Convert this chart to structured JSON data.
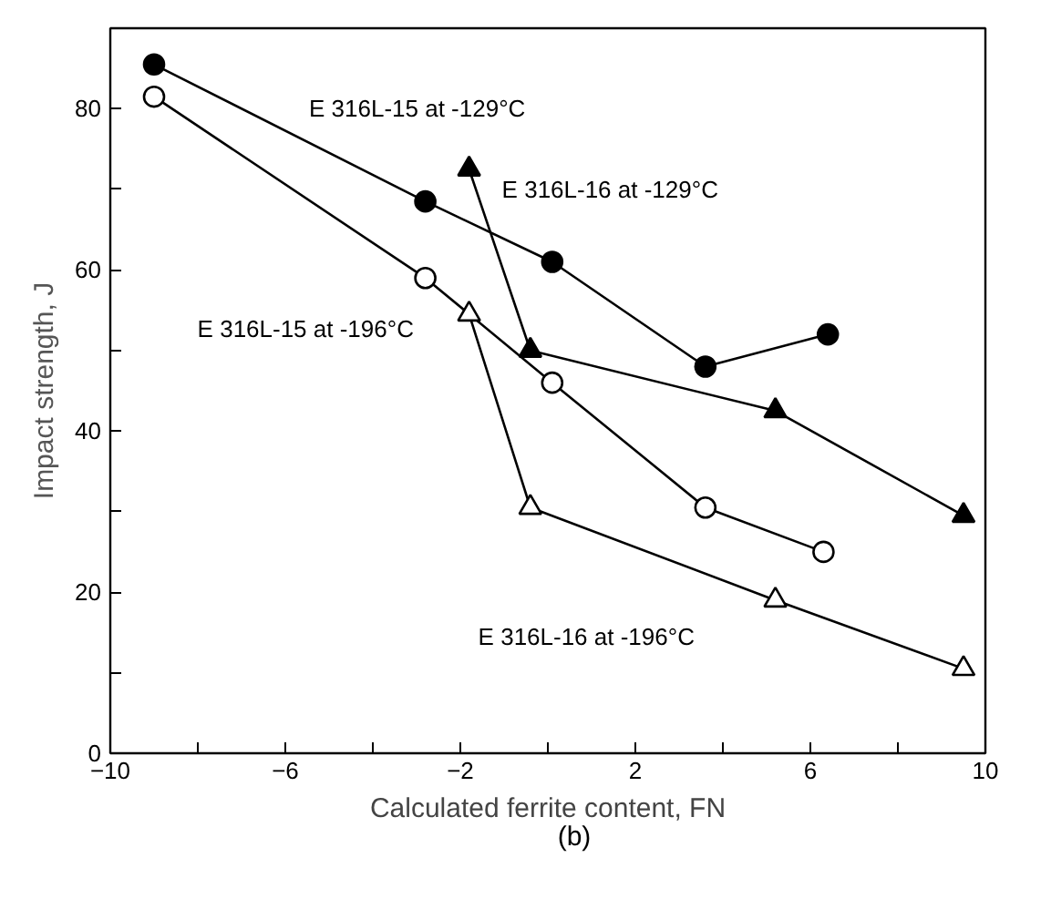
{
  "chart_data": {
    "type": "line",
    "xlabel": "Calculated ferrite content, FN",
    "ylabel": "Impact strength, J",
    "xlim": [
      -10,
      10
    ],
    "ylim": [
      0,
      90
    ],
    "xticks": [
      -10,
      {
        "value": -8,
        "label": null
      },
      -6,
      {
        "value": -4,
        "label": null
      },
      -2,
      {
        "value": 0,
        "label": null
      },
      2,
      {
        "value": 4,
        "label": null
      },
      6,
      {
        "value": 8,
        "label": null
      },
      10
    ],
    "yticks": [
      0,
      {
        "value": 10,
        "label": null
      },
      20,
      {
        "value": 30,
        "label": null
      },
      40,
      {
        "value": 50,
        "label": null
      },
      60,
      {
        "value": 70,
        "label": null
      },
      80
    ],
    "grid": false,
    "line_style": "solid",
    "series": [
      {
        "name": "E 316L-15 at -129°C",
        "color": "#000000",
        "marker": "circle",
        "colors": [
          "#000000",
          "#000000",
          "#000000",
          "#000000",
          "#000000"
        ],
        "x": [
          -9,
          -2.8,
          0.1,
          3.6,
          6.4
        ],
        "values": [
          85.5,
          68.5,
          61,
          48,
          52
        ]
      },
      {
        "name": "E 316L-15 at -196°C",
        "color": "#000000",
        "marker": "circle",
        "colors": [
          "#ffffff",
          "#ffffff",
          "#ffffff",
          "#ffffff",
          "#ffffff"
        ],
        "x": [
          -9,
          -2.8,
          0.1,
          3.6,
          6.3
        ],
        "values": [
          81.5,
          59,
          46,
          30.5,
          25
        ]
      },
      {
        "name": "E 316L-16 at -129°C",
        "color": "#000000",
        "marker": "triangle",
        "colors": [
          "#000000",
          "#000000",
          "#000000",
          "#000000"
        ],
        "x": [
          -1.8,
          -0.4,
          5.2,
          9.5
        ],
        "values": [
          72.5,
          50,
          42.5,
          29.5
        ]
      },
      {
        "name": "E 316L-16 at -196°C",
        "color": "#000000",
        "marker": "triangle",
        "colors": [
          "#ffffff",
          "#ffffff",
          "#ffffff",
          "#ffffff"
        ],
        "x": [
          -1.8,
          -0.4,
          5.2,
          9.5
        ],
        "values": [
          54.5,
          30.5,
          19,
          10.5
        ]
      }
    ],
    "annotations": [
      "(b)"
    ]
  }
}
